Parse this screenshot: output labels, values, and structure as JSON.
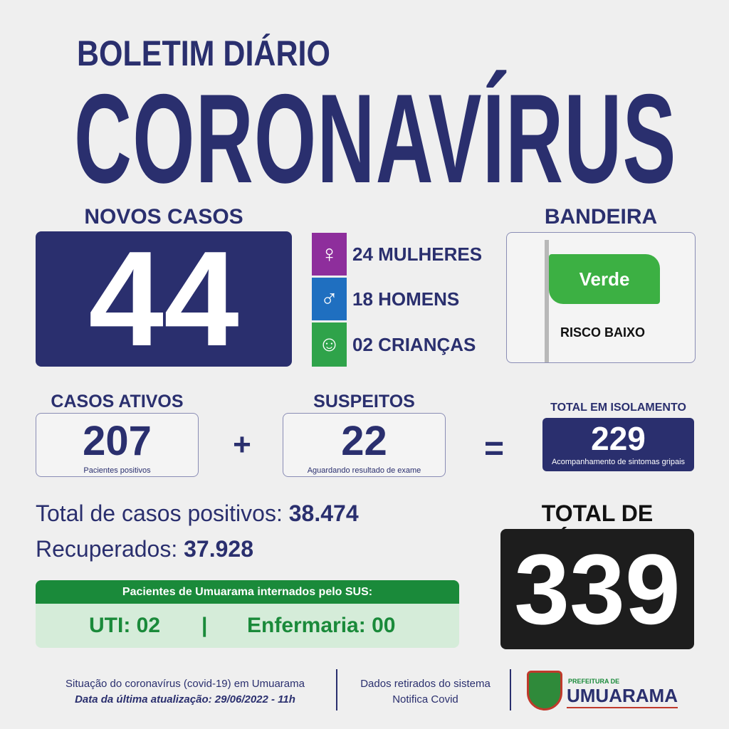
{
  "header": {
    "subtitle": "BOLETIM DIÁRIO",
    "title": "CORONAVÍRUS"
  },
  "novos_casos": {
    "label": "NOVOS CASOS",
    "value": "44",
    "breakdown": [
      {
        "icon": "woman-icon",
        "text": "24 MULHERES",
        "color": "#8e2e9c"
      },
      {
        "icon": "man-icon",
        "text": "18 HOMENS",
        "color": "#1f6fc0"
      },
      {
        "icon": "child-icon",
        "text": "02 CRIANÇAS",
        "color": "#2fa34a"
      }
    ]
  },
  "bandeira": {
    "label": "BANDEIRA",
    "flag": "Verde",
    "risk": "RISCO BAIXO",
    "flag_color": "#3cb043"
  },
  "casos_ativos": {
    "label": "CASOS ATIVOS",
    "value": "207",
    "caption": "Pacientes positivos"
  },
  "plus": "+",
  "suspeitos": {
    "label": "SUSPEITOS",
    "value": "22",
    "caption": "Aguardando resultado de exame"
  },
  "equals": "=",
  "isolamento": {
    "label": "TOTAL EM ISOLAMENTO",
    "value": "229",
    "caption": "Acompanhamento de sintomas gripais"
  },
  "totais": {
    "positivos_label": "Total de casos positivos:",
    "positivos": "38.474",
    "recuperados_label": "Recuperados:",
    "recuperados": "37.928"
  },
  "sus": {
    "title": "Pacientes de Umuarama internados pelo SUS:",
    "uti": "UTI: 02",
    "sep": "|",
    "enfermaria": "Enfermaria: 00"
  },
  "obitos": {
    "label": "TOTAL DE ÓBITOS",
    "value": "339"
  },
  "footer": {
    "line1": "Situação do coronavírus (covid-19) em Umuarama",
    "line2": "Data da última atualização: 29/06/2022 - 11h",
    "source1": "Dados retirados do sistema",
    "source2": "Notifica Covid",
    "logo_small": "PREFEITURA DE",
    "logo_big": "UMUARAMA"
  },
  "colors": {
    "navy": "#2a2f6e",
    "green": "#1a8a3a",
    "black": "#1d1d1d"
  }
}
